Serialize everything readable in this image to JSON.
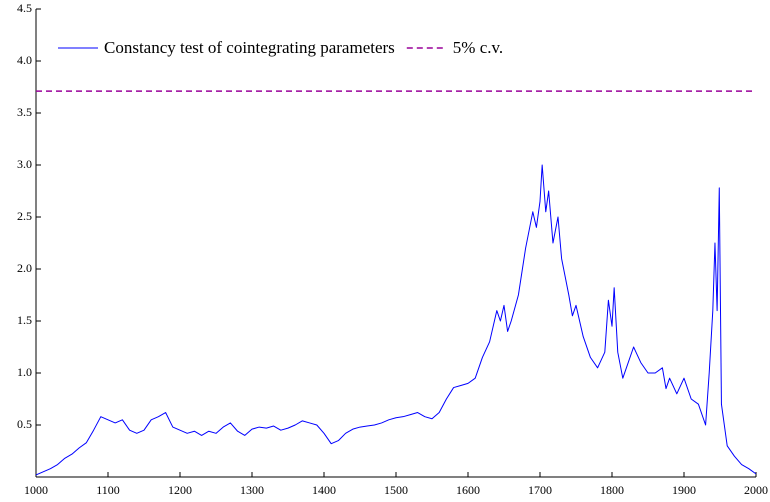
{
  "chart_data": {
    "type": "line",
    "x": [
      1000,
      1010,
      1020,
      1030,
      1040,
      1050,
      1060,
      1070,
      1080,
      1090,
      1100,
      1110,
      1120,
      1130,
      1140,
      1150,
      1160,
      1170,
      1180,
      1190,
      1200,
      1210,
      1220,
      1230,
      1240,
      1250,
      1260,
      1270,
      1280,
      1290,
      1300,
      1310,
      1320,
      1330,
      1340,
      1350,
      1360,
      1370,
      1380,
      1390,
      1400,
      1410,
      1420,
      1430,
      1440,
      1450,
      1460,
      1470,
      1480,
      1490,
      1500,
      1510,
      1520,
      1530,
      1540,
      1550,
      1560,
      1570,
      1580,
      1590,
      1600,
      1610,
      1620,
      1630,
      1640,
      1645,
      1650,
      1655,
      1660,
      1670,
      1680,
      1690,
      1695,
      1700,
      1703,
      1708,
      1712,
      1718,
      1725,
      1730,
      1740,
      1745,
      1750,
      1760,
      1770,
      1780,
      1790,
      1795,
      1800,
      1803,
      1808,
      1815,
      1820,
      1830,
      1840,
      1850,
      1860,
      1870,
      1875,
      1880,
      1890,
      1900,
      1910,
      1920,
      1930,
      1935,
      1940,
      1943,
      1946,
      1949,
      1952,
      1960,
      1970,
      1980,
      1990,
      2000
    ],
    "series": [
      {
        "name": "Constancy test of cointegrating parameters",
        "color": "#0000ff",
        "values": [
          0.02,
          0.05,
          0.08,
          0.12,
          0.18,
          0.22,
          0.28,
          0.33,
          0.45,
          0.58,
          0.55,
          0.52,
          0.55,
          0.45,
          0.42,
          0.45,
          0.55,
          0.58,
          0.62,
          0.48,
          0.45,
          0.42,
          0.44,
          0.4,
          0.44,
          0.42,
          0.48,
          0.52,
          0.44,
          0.4,
          0.46,
          0.48,
          0.47,
          0.49,
          0.45,
          0.47,
          0.5,
          0.54,
          0.52,
          0.5,
          0.42,
          0.32,
          0.35,
          0.42,
          0.46,
          0.48,
          0.49,
          0.5,
          0.52,
          0.55,
          0.57,
          0.58,
          0.6,
          0.62,
          0.58,
          0.56,
          0.62,
          0.75,
          0.86,
          0.88,
          0.9,
          0.95,
          1.15,
          1.3,
          1.6,
          1.5,
          1.65,
          1.4,
          1.5,
          1.75,
          2.2,
          2.55,
          2.4,
          2.65,
          3.0,
          2.55,
          2.75,
          2.25,
          2.5,
          2.1,
          1.75,
          1.55,
          1.65,
          1.35,
          1.15,
          1.05,
          1.2,
          1.7,
          1.45,
          1.82,
          1.2,
          0.95,
          1.05,
          1.25,
          1.1,
          1.0,
          1.0,
          1.05,
          0.85,
          0.95,
          0.8,
          0.95,
          0.75,
          0.7,
          0.5,
          1.0,
          1.6,
          2.25,
          1.6,
          2.78,
          0.7,
          0.3,
          0.2,
          0.12,
          0.08,
          0.03
        ]
      },
      {
        "name": "5% c.v.",
        "color": "#990099",
        "dashed": true,
        "value": 3.71
      }
    ],
    "xlim": [
      1000,
      2000
    ],
    "xticks": [
      1000,
      1100,
      1200,
      1300,
      1400,
      1500,
      1600,
      1700,
      1800,
      1900,
      2000
    ],
    "ylim": [
      0,
      4.5
    ],
    "yticks": [
      0.5,
      {
        "value": 1,
        "label": "1.0"
      },
      1.5,
      {
        "value": 2,
        "label": "2.0"
      },
      2.5,
      {
        "value": 3,
        "label": "3.0"
      },
      3.5,
      {
        "value": 4,
        "label": "4.0"
      },
      4.5
    ]
  }
}
